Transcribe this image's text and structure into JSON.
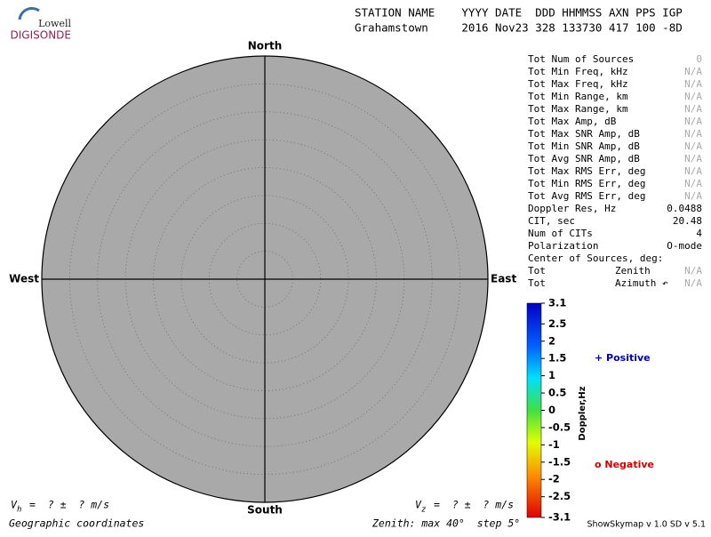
{
  "logo": {
    "top": "Lowell",
    "bottom": "DIGISONDE"
  },
  "header": {
    "labels": "STATION NAME    YYYY DATE  DDD HHMMSS AXN PPS IGP",
    "values": "Grahamstown     2016 Nov23 328 133730 417 100 -8D"
  },
  "compass": {
    "north": "North",
    "south": "South",
    "east": "East",
    "west": "West"
  },
  "stats": [
    [
      "Tot Num of Sources",
      "0"
    ],
    [
      "Tot Min Freq, kHz",
      "N/A"
    ],
    [
      "Tot Max Freq, kHz",
      "N/A"
    ],
    [
      "Tot Min Range, km",
      "N/A"
    ],
    [
      "Tot Max Range, km",
      "N/A"
    ],
    [
      "Tot Max Amp, dB",
      "N/A"
    ],
    [
      "Tot Max SNR Amp, dB",
      "N/A"
    ],
    [
      "Tot Min SNR Amp, dB",
      "N/A"
    ],
    [
      "Tot Avg SNR Amp, dB",
      "N/A"
    ],
    [
      "Tot Max RMS Err, deg",
      "N/A"
    ],
    [
      "Tot Min RMS Err, deg",
      "N/A"
    ],
    [
      "Tot Avg RMS Err, deg",
      "N/A"
    ],
    [
      "Doppler Res, Hz",
      "0.0488"
    ],
    [
      "CIT, sec",
      "20.48"
    ],
    [
      "Num of CITs",
      "4"
    ],
    [
      "Polarization",
      "O-mode"
    ]
  ],
  "center_heading": "Center of Sources, deg:",
  "center": [
    [
      "Tot",
      "Zenith",
      "N/A"
    ],
    [
      "Tot",
      "Azimuth ↶",
      "N/A"
    ]
  ],
  "colorbar": {
    "label": "Doppler,Hz",
    "ticks": [
      3.1,
      2.5,
      2.0,
      1.5,
      1.0,
      0.5,
      0,
      -0.5,
      -1.0,
      -1.5,
      -2.0,
      -2.5,
      -3.1
    ]
  },
  "legend": {
    "positive": "+ Positive",
    "negative": "o Negative"
  },
  "velocity": {
    "vh": {
      "symbol": "V",
      "subscript": "h",
      "text": "=  ? ±  ? m/s"
    },
    "vz": {
      "symbol": "V",
      "subscript": "z",
      "text": "=  ? ±  ? m/s"
    }
  },
  "footer": {
    "coordinates": "Geographic coordinates",
    "zenith": "Zenith: max 40°  step 5°",
    "version": "ShowSkymap v 1.0  SD v 5.1"
  }
}
